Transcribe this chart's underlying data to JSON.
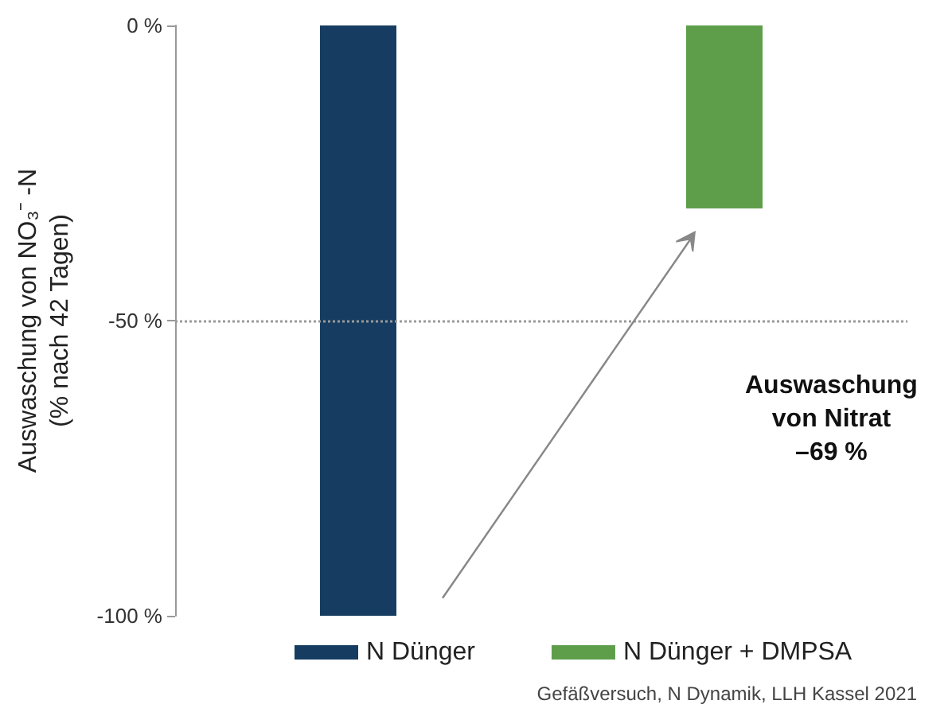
{
  "chart_data": {
    "type": "bar",
    "ylabel": "Auswaschung von NO₃⁻ -N\n(% nach 42 Tagen)",
    "categories": [
      null,
      null
    ],
    "series": [
      {
        "name": "N Dünger",
        "color": "#163d61",
        "values": [
          -100,
          null
        ]
      },
      {
        "name": "N Dünger + DMPSA",
        "color": "#5e9e4a",
        "values": [
          null,
          -31
        ]
      }
    ],
    "stacked": true,
    "ylim": [
      -100,
      0
    ],
    "yticks": [
      {
        "value": -100,
        "label": "-100 %"
      },
      {
        "value": -50,
        "label": "-50 %"
      },
      {
        "value": 0,
        "label": "0 %"
      }
    ],
    "ref_lines": [
      {
        "axis": "y",
        "value": -50,
        "color": "#9a9a9a",
        "line_style": "dotted"
      }
    ],
    "annotations": [
      "Auswaschung\nvon Nitrat\n–69 %",
      "Gefäßversuch, N Dynamik, LLH Kassel 2021"
    ],
    "grid": false,
    "legend": "bottom"
  }
}
